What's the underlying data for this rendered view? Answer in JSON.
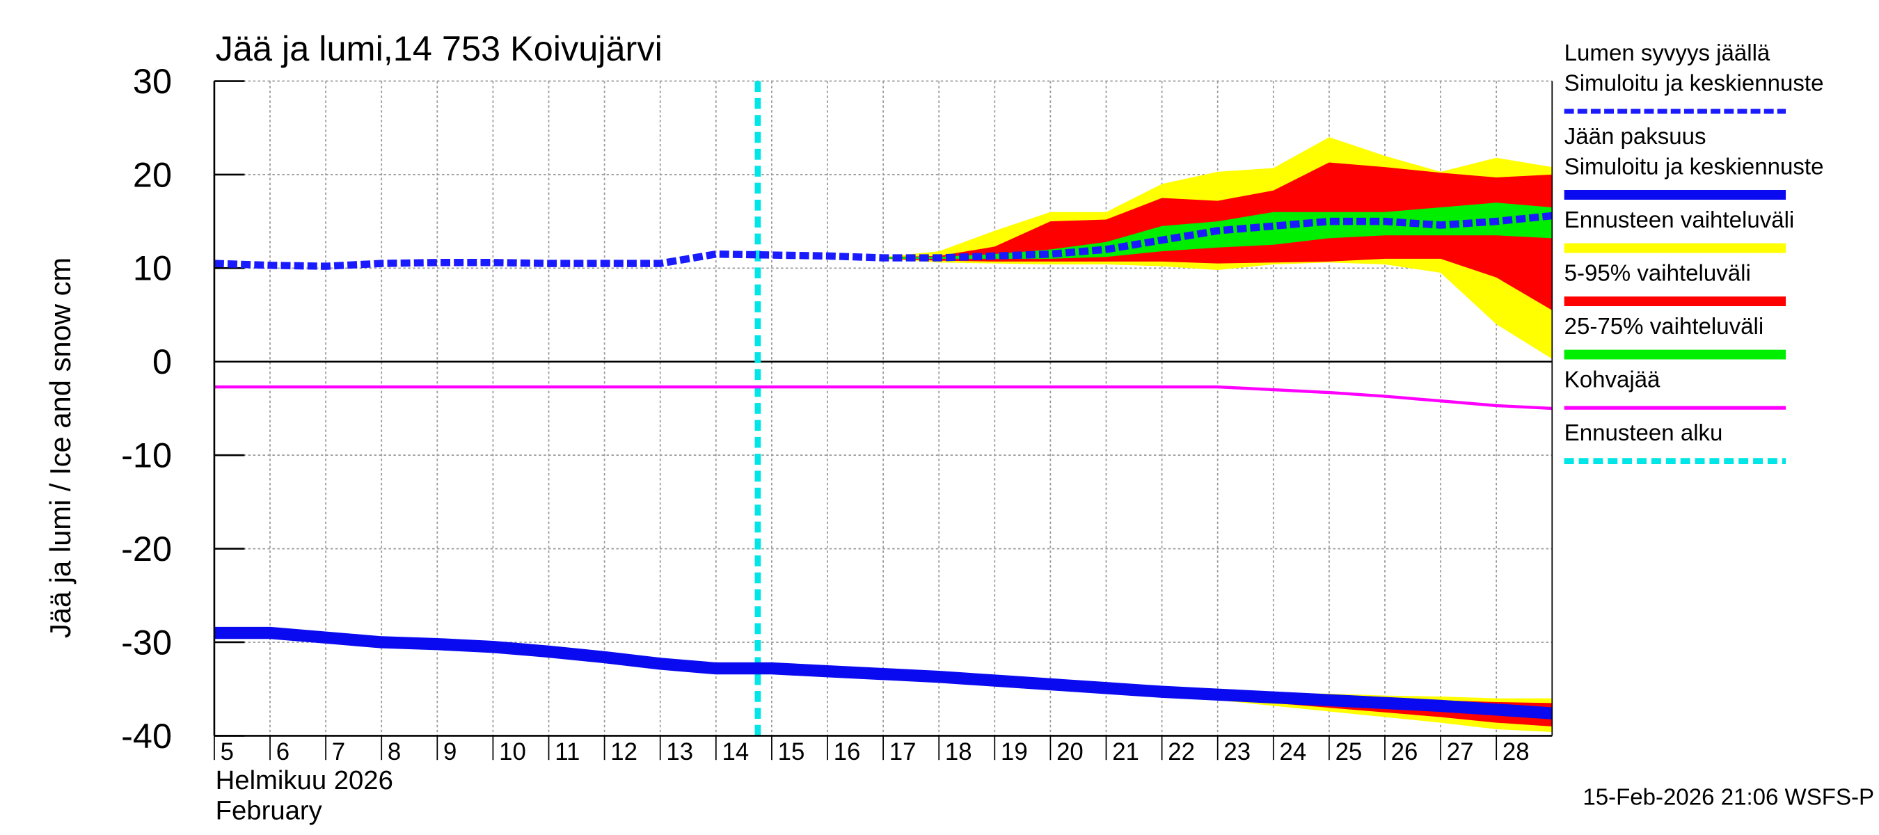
{
  "chart_data": {
    "type": "line",
    "title": "Jää ja lumi,14 753 Koivujärvi",
    "ylabel": "Jää ja lumi / Ice and snow    cm",
    "x_label_lines": [
      "Helmikuu  2026",
      "February"
    ],
    "timestamp": "15-Feb-2026 21:06 WSFS-P",
    "x": [
      5,
      6,
      7,
      8,
      9,
      10,
      11,
      12,
      13,
      14,
      15,
      16,
      17,
      18,
      19,
      20,
      21,
      22,
      23,
      24,
      25,
      26,
      27,
      28,
      29
    ],
    "xlim": [
      5,
      29
    ],
    "xticks": [
      5,
      6,
      7,
      8,
      9,
      10,
      11,
      12,
      13,
      14,
      15,
      16,
      17,
      18,
      19,
      20,
      21,
      22,
      23,
      24,
      25,
      26,
      27,
      28
    ],
    "ylim": [
      -40,
      30
    ],
    "yticks": [
      -40,
      -30,
      -20,
      -10,
      0,
      10,
      20,
      30
    ],
    "grid": true,
    "series": [
      {
        "name": "Lumen syvyys jäällä",
        "subname": "Simuloitu ja keskiennuste",
        "color": "#1a1aff",
        "style": "dashed",
        "values": [
          10.5,
          10.3,
          10.2,
          10.5,
          10.6,
          10.6,
          10.5,
          10.5,
          10.5,
          11.5,
          11.4,
          11.3,
          11.1,
          11.1,
          11.3,
          11.5,
          12,
          13,
          14,
          14.5,
          15,
          15,
          14.6,
          15,
          15.6
        ]
      },
      {
        "name": "Jään paksuus",
        "subname": "Simuloitu ja keskiennuste",
        "color": "#0a0af0",
        "style": "solid",
        "values": [
          -29,
          -29,
          -29.5,
          -30,
          -30.2,
          -30.5,
          -31,
          -31.6,
          -32.3,
          -32.8,
          -32.8,
          -33.1,
          -33.4,
          -33.7,
          -34.1,
          -34.5,
          -34.9,
          -35.3,
          -35.6,
          -35.9,
          -36.2,
          -36.5,
          -36.8,
          -37.2,
          -37.6
        ]
      },
      {
        "name": "Kohvajää",
        "color": "#ff00ff",
        "style": "thin",
        "values": [
          -2.7,
          -2.7,
          -2.7,
          -2.7,
          -2.7,
          -2.7,
          -2.7,
          -2.7,
          -2.7,
          -2.7,
          -2.7,
          -2.7,
          -2.7,
          -2.7,
          -2.7,
          -2.7,
          -2.7,
          -2.7,
          -2.7,
          -3.0,
          -3.3,
          -3.7,
          -4.2,
          -4.7,
          -5
        ]
      }
    ],
    "band_x": [
      17,
      18,
      19,
      20,
      21,
      22,
      23,
      24,
      25,
      26,
      27,
      28,
      29
    ],
    "bands": [
      {
        "name": "Ennusteen vaihteluväli",
        "color": "#ffff00",
        "ranges": [
          {
            "upper": [
              11.2,
              11.8,
              14,
              16,
              16,
              19,
              20.3,
              20.7,
              24,
              22,
              20.3,
              21.8,
              20.8
            ],
            "lower": [
              11,
              10.6,
              10.5,
              10.4,
              10.4,
              10.2,
              9.8,
              10.4,
              10.6,
              10.4,
              9.5,
              4,
              0.3
            ]
          },
          {
            "upper": [
              -33.4,
              -33.7,
              -34,
              -34.4,
              -34.7,
              -35,
              -35.2,
              -35.4,
              -35.5,
              -35.7,
              -35.8,
              -36,
              -36
            ],
            "lower": [
              -33.4,
              -33.8,
              -34.2,
              -34.8,
              -35.2,
              -35.6,
              -36.2,
              -36.8,
              -37.4,
              -38,
              -38.6,
              -39.3,
              -39.6
            ]
          }
        ]
      },
      {
        "name": "5-95% vaihteluväli",
        "color": "#ff0000",
        "ranges": [
          {
            "upper": [
              11.2,
              11.3,
              12.3,
              15,
              15.2,
              17.5,
              17.2,
              18.3,
              21.3,
              20.8,
              20.2,
              19.7,
              20
            ],
            "lower": [
              11,
              10.8,
              10.7,
              10.7,
              10.7,
              10.7,
              10.5,
              10.6,
              10.7,
              11,
              11,
              9,
              5.5
            ]
          },
          {
            "upper": [
              -33.4,
              -33.7,
              -34.1,
              -34.5,
              -34.8,
              -35.1,
              -35.3,
              -35.5,
              -35.8,
              -36,
              -36.2,
              -36.4,
              -36.5
            ],
            "lower": [
              -33.4,
              -33.8,
              -34.2,
              -34.7,
              -35.1,
              -35.5,
              -36,
              -36.5,
              -37,
              -37.5,
              -38,
              -38.6,
              -39
            ]
          }
        ]
      },
      {
        "name": "25-75% vaihteluväli",
        "color": "#00ee00",
        "ranges": [
          {
            "upper": [
              11.2,
              11.2,
              11.5,
              12,
              12.8,
              14.5,
              15,
              16,
              16,
              16,
              16.5,
              17,
              16.5
            ],
            "lower": [
              11,
              11,
              11,
              11,
              11.2,
              11.8,
              12.2,
              12.5,
              13.2,
              13.5,
              13.5,
              13.5,
              13.2
            ]
          },
          {
            "upper": [
              -33.4,
              -33.7,
              -34.1,
              -34.4,
              -34.8,
              -35.1,
              -35.4,
              -35.7,
              -36,
              -36.2,
              -36.5,
              -36.8,
              -37
            ],
            "lower": [
              -33.4,
              -33.7,
              -34.1,
              -34.5,
              -34.9,
              -35.3,
              -35.6,
              -35.9,
              -36.3,
              -36.6,
              -37,
              -37.4,
              -37.8
            ]
          }
        ]
      }
    ],
    "forecast_start": {
      "name": "Ennusteen alku",
      "x": 14.75,
      "color": "#00e5e5"
    }
  }
}
